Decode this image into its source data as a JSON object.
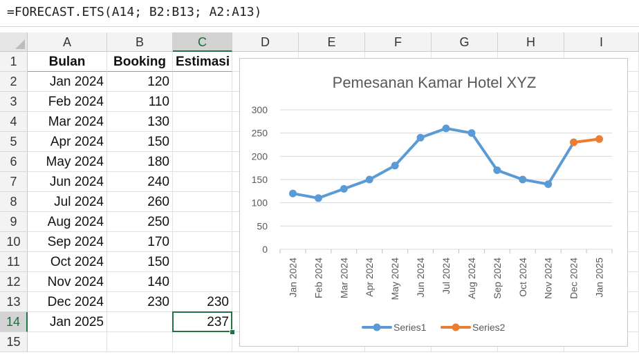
{
  "formula_bar": {
    "formula": "=FORECAST.ETS(A14; B2:B13; A2:A13)"
  },
  "columns": [
    "A",
    "B",
    "C",
    "D",
    "E",
    "F",
    "G",
    "H",
    "I"
  ],
  "rows": [
    "1",
    "2",
    "3",
    "4",
    "5",
    "6",
    "7",
    "8",
    "9",
    "10",
    "11",
    "12",
    "13",
    "14",
    "15"
  ],
  "active_cell": "C14",
  "sheet": {
    "headers": [
      "Bulan",
      "Booking",
      "Estimasi"
    ],
    "data": [
      [
        "Jan 2024",
        "120",
        ""
      ],
      [
        "Feb 2024",
        "110",
        ""
      ],
      [
        "Mar 2024",
        "130",
        ""
      ],
      [
        "Apr 2024",
        "150",
        ""
      ],
      [
        "May 2024",
        "180",
        ""
      ],
      [
        "Jun 2024",
        "240",
        ""
      ],
      [
        "Jul 2024",
        "260",
        ""
      ],
      [
        "Aug 2024",
        "250",
        ""
      ],
      [
        "Sep 2024",
        "170",
        ""
      ],
      [
        "Oct 2024",
        "150",
        ""
      ],
      [
        "Nov 2024",
        "140",
        ""
      ],
      [
        "Dec 2024",
        "230",
        "230"
      ],
      [
        "Jan 2025",
        "",
        "237"
      ]
    ]
  },
  "chart_data": {
    "type": "line",
    "title": "Pemesanan Kamar Hotel XYZ",
    "categories": [
      "Jan 2024",
      "Feb 2024",
      "Mar 2024",
      "Apr 2024",
      "May 2024",
      "Jun 2024",
      "Jul 2024",
      "Aug 2024",
      "Sep 2024",
      "Oct 2024",
      "Nov 2024",
      "Dec 2024",
      "Jan 2025"
    ],
    "series": [
      {
        "name": "Series1",
        "color": "#5b9bd5",
        "values": [
          120,
          110,
          130,
          150,
          180,
          240,
          260,
          250,
          170,
          150,
          140,
          230,
          null
        ]
      },
      {
        "name": "Series2",
        "color": "#ed7d31",
        "values": [
          null,
          null,
          null,
          null,
          null,
          null,
          null,
          null,
          null,
          null,
          null,
          230,
          237
        ]
      }
    ],
    "ylim": [
      0,
      300
    ],
    "yticks": [
      "0",
      "50",
      "100",
      "150",
      "200",
      "250",
      "300"
    ],
    "grid": true,
    "legend": "bottom",
    "xlabel": "",
    "ylabel": ""
  }
}
